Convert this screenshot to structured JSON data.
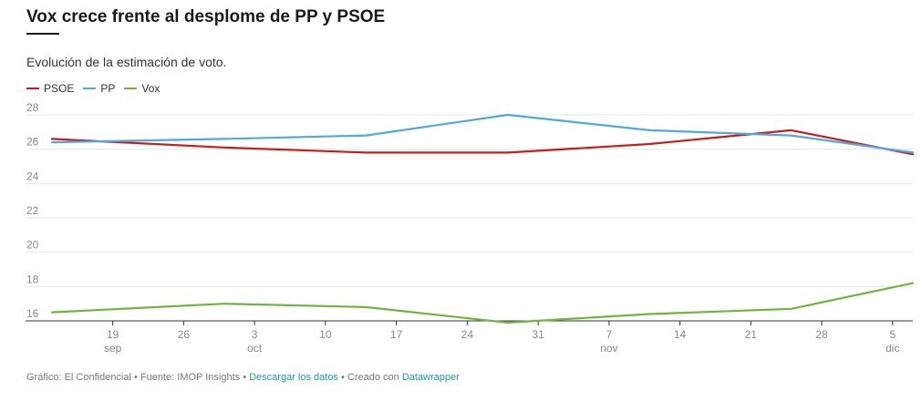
{
  "header": {
    "title": "Vox crece frente al desplome de PP y PSOE",
    "subtitle": "Evolución de la estimación de voto."
  },
  "chart_data": {
    "type": "line",
    "x": [
      "2019-09-13",
      "2019-09-30",
      "2019-10-14",
      "2019-10-28",
      "2019-11-11",
      "2019-11-25",
      "2019-12-07"
    ],
    "series": [
      {
        "name": "PSOE",
        "color": "#c71e1d",
        "values": [
          26.6,
          26.1,
          25.8,
          25.8,
          26.3,
          27.1,
          25.7
        ]
      },
      {
        "name": "PP",
        "color": "#4fa8e0",
        "values": [
          26.4,
          26.6,
          26.8,
          28.0,
          27.1,
          26.8,
          25.8
        ]
      },
      {
        "name": "Vox",
        "color": "#6fb43f",
        "values": [
          16.5,
          17.0,
          16.8,
          15.9,
          16.4,
          16.7,
          18.2
        ]
      }
    ],
    "ylim": [
      16,
      28
    ],
    "yticks": [
      "16",
      "18",
      "20",
      "22",
      "24",
      "26",
      "28"
    ],
    "xticks": [
      {
        "date": "2019-09-19",
        "label": "19",
        "sub": "sep"
      },
      {
        "date": "2019-09-26",
        "label": "26",
        "sub": ""
      },
      {
        "date": "2019-10-03",
        "label": "3",
        "sub": "oct"
      },
      {
        "date": "2019-10-10",
        "label": "10",
        "sub": ""
      },
      {
        "date": "2019-10-17",
        "label": "17",
        "sub": ""
      },
      {
        "date": "2019-10-24",
        "label": "24",
        "sub": ""
      },
      {
        "date": "2019-10-31",
        "label": "31",
        "sub": ""
      },
      {
        "date": "2019-11-07",
        "label": "7",
        "sub": "nov"
      },
      {
        "date": "2019-11-14",
        "label": "14",
        "sub": ""
      },
      {
        "date": "2019-11-21",
        "label": "21",
        "sub": ""
      },
      {
        "date": "2019-11-28",
        "label": "28",
        "sub": ""
      },
      {
        "date": "2019-12-05",
        "label": "5",
        "sub": "dic"
      }
    ],
    "grid": true,
    "legend": "top-left"
  },
  "footer": {
    "prefix": "Gráfico: El Confidencial • Fuente: IMOP Insights • ",
    "download_link": "Descargar los datos",
    "middle": " • Creado con ",
    "tool_link": "Datawrapper"
  }
}
